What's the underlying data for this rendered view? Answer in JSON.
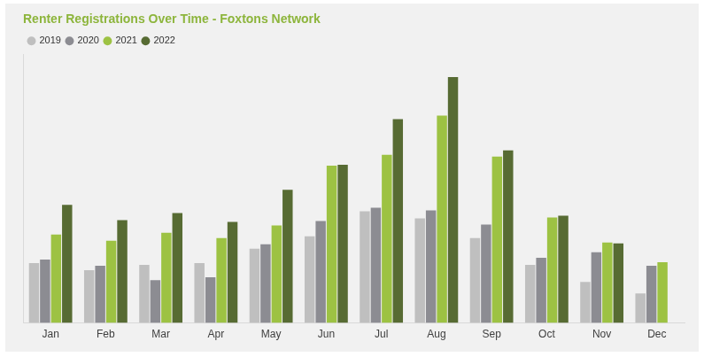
{
  "chart_data": {
    "type": "bar",
    "title": "Renter Registrations Over Time - Foxtons Network",
    "categories": [
      "Jan",
      "Feb",
      "Mar",
      "Apr",
      "May",
      "Jun",
      "Jul",
      "Aug",
      "Sep",
      "Oct",
      "Nov",
      "Dec"
    ],
    "series": [
      {
        "name": "2019",
        "color": "#bfbfbf",
        "values": [
          67,
          59,
          65,
          67,
          83,
          97,
          125,
          117,
          95,
          65,
          46,
          33
        ]
      },
      {
        "name": "2020",
        "color": "#8c8c92",
        "values": [
          71,
          64,
          48,
          51,
          88,
          114,
          129,
          126,
          110,
          73,
          79,
          64
        ]
      },
      {
        "name": "2021",
        "color": "#9dc243",
        "values": [
          99,
          92,
          101,
          95,
          109,
          176,
          188,
          232,
          186,
          118,
          90,
          68
        ]
      },
      {
        "name": "2022",
        "color": "#576b33",
        "values": [
          132,
          115,
          123,
          113,
          149,
          177,
          228,
          275,
          193,
          120,
          89,
          null
        ]
      }
    ],
    "ylim": [
      0,
      300
    ],
    "grid": false,
    "legend": "top-left",
    "tick_labels": "x"
  }
}
